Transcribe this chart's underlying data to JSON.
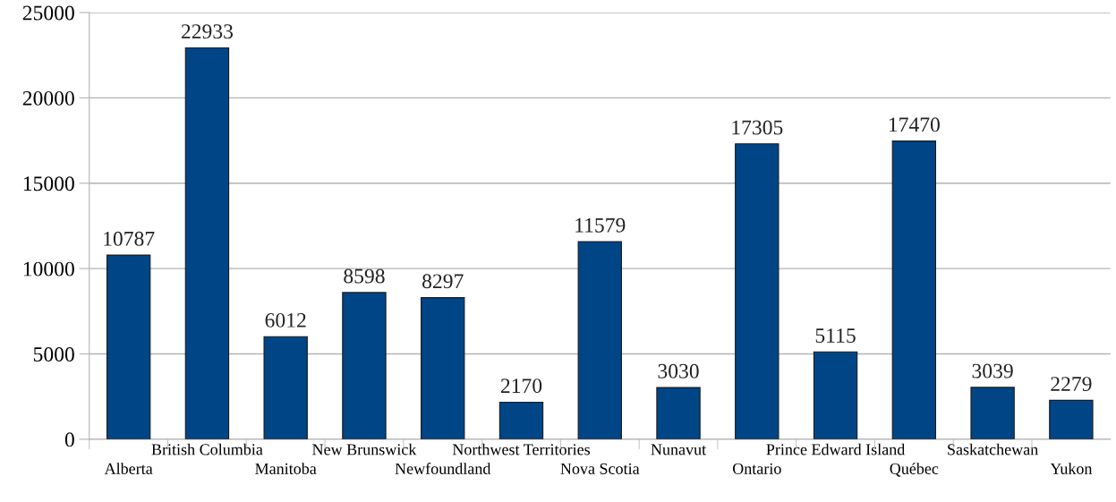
{
  "chart_data": {
    "type": "bar",
    "categories": [
      "Alberta",
      "British Columbia",
      "Manitoba",
      "New Brunswick",
      "Newfoundland",
      "Northwest Territories",
      "Nova Scotia",
      "Nunavut",
      "Ontario",
      "Prince Edward Island",
      "Québec",
      "Saskatchewan",
      "Yukon"
    ],
    "values": [
      10787,
      22933,
      6012,
      8598,
      8297,
      2170,
      11579,
      3030,
      17305,
      5115,
      17470,
      3039,
      2279
    ],
    "color": "#004586",
    "ylim": [
      0,
      25000
    ],
    "yticks": [
      0,
      5000,
      10000,
      15000,
      20000,
      25000
    ],
    "grid": "y",
    "data_labels": true
  }
}
